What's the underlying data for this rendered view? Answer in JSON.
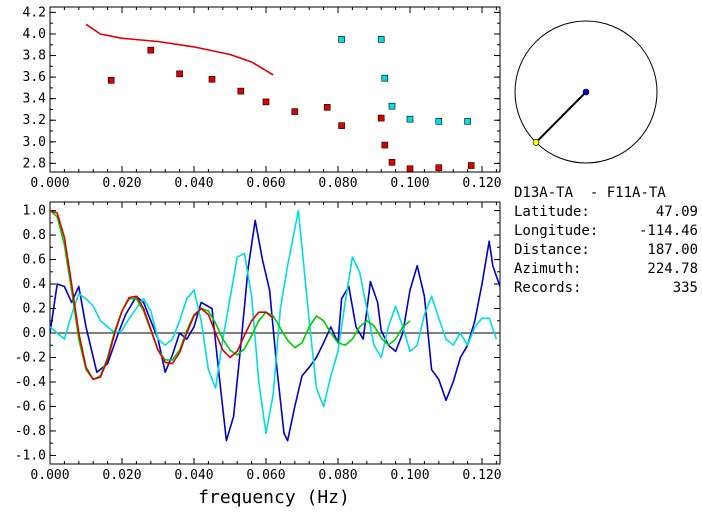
{
  "chart_data": [
    {
      "type": "scatter",
      "xlim": [
        0.0,
        0.125
      ],
      "ylim": [
        2.72,
        4.25
      ],
      "x_ticks": [
        "0.000",
        "0.020",
        "0.040",
        "0.060",
        "0.080",
        "0.100",
        "0.120"
      ],
      "y_ticks": [
        "2.8",
        "3.0",
        "3.2",
        "3.4",
        "3.6",
        "3.8",
        "4.0",
        "4.2"
      ],
      "y_tick_values": [
        2.8,
        3.0,
        3.2,
        3.4,
        3.6,
        3.8,
        4.0,
        4.2
      ],
      "x_tick_values": [
        0.0,
        0.02,
        0.04,
        0.06,
        0.08,
        0.1,
        0.12
      ],
      "series": [
        {
          "marker": "square",
          "color": "#dd0000",
          "points": [
            [
              0.017,
              3.57
            ],
            [
              0.028,
              3.85
            ],
            [
              0.036,
              3.63
            ],
            [
              0.045,
              3.58
            ],
            [
              0.053,
              3.47
            ],
            [
              0.06,
              3.37
            ],
            [
              0.068,
              3.28
            ],
            [
              0.077,
              3.32
            ],
            [
              0.081,
              3.15
            ],
            [
              0.092,
              3.22
            ],
            [
              0.093,
              2.97
            ],
            [
              0.095,
              2.81
            ],
            [
              0.1,
              2.75
            ],
            [
              0.108,
              2.76
            ],
            [
              0.117,
              2.78
            ]
          ]
        },
        {
          "marker": "square",
          "color": "#00dddd",
          "points": [
            [
              0.081,
              3.95
            ],
            [
              0.092,
              3.95
            ],
            [
              0.093,
              3.59
            ],
            [
              0.095,
              3.33
            ],
            [
              0.1,
              3.21
            ],
            [
              0.108,
              3.19
            ],
            [
              0.116,
              3.19
            ]
          ]
        },
        {
          "marker": "line",
          "color": "#dd0000",
          "points": [
            [
              0.01,
              4.09
            ],
            [
              0.014,
              4.0
            ],
            [
              0.02,
              3.96
            ],
            [
              0.03,
              3.93
            ],
            [
              0.04,
              3.88
            ],
            [
              0.05,
              3.81
            ],
            [
              0.056,
              3.74
            ],
            [
              0.062,
              3.62
            ]
          ]
        }
      ]
    },
    {
      "type": "line",
      "xlabel": "frequency (Hz)",
      "xlim": [
        0.0,
        0.125
      ],
      "ylim": [
        -1.07,
        1.07
      ],
      "x_ticks": [
        "0.000",
        "0.020",
        "0.040",
        "0.060",
        "0.080",
        "0.100",
        "0.120"
      ],
      "x_tick_values": [
        0.0,
        0.02,
        0.04,
        0.06,
        0.08,
        0.1,
        0.12
      ],
      "y_ticks": [
        "1.0",
        "0.8",
        "0.6",
        "0.4",
        "0.2",
        "0.0",
        "-0.2",
        "-0.4",
        "-0.6",
        "-0.8",
        "-1.0"
      ],
      "y_tick_values": [
        1.0,
        0.8,
        0.6,
        0.4,
        0.2,
        0.0,
        -0.2,
        -0.4,
        -0.6,
        -0.8,
        -1.0
      ],
      "series": [
        {
          "color": "#0000cc",
          "points": [
            [
              0.0,
              0.0
            ],
            [
              0.002,
              0.4
            ],
            [
              0.004,
              0.38
            ],
            [
              0.006,
              0.25
            ],
            [
              0.008,
              0.38
            ],
            [
              0.01,
              0.05
            ],
            [
              0.013,
              -0.32
            ],
            [
              0.016,
              -0.25
            ],
            [
              0.019,
              0.0
            ],
            [
              0.021,
              0.15
            ],
            [
              0.024,
              0.3
            ],
            [
              0.026,
              0.25
            ],
            [
              0.028,
              0.1
            ],
            [
              0.03,
              -0.05
            ],
            [
              0.032,
              -0.32
            ],
            [
              0.034,
              -0.18
            ],
            [
              0.036,
              0.0
            ],
            [
              0.038,
              -0.05
            ],
            [
              0.04,
              0.05
            ],
            [
              0.042,
              0.25
            ],
            [
              0.045,
              0.2
            ],
            [
              0.047,
              -0.35
            ],
            [
              0.049,
              -0.88
            ],
            [
              0.051,
              -0.68
            ],
            [
              0.053,
              -0.1
            ],
            [
              0.055,
              0.52
            ],
            [
              0.057,
              0.92
            ],
            [
              0.059,
              0.6
            ],
            [
              0.061,
              0.35
            ],
            [
              0.063,
              -0.28
            ],
            [
              0.065,
              -0.82
            ],
            [
              0.066,
              -0.88
            ],
            [
              0.068,
              -0.6
            ],
            [
              0.07,
              -0.35
            ],
            [
              0.072,
              -0.28
            ],
            [
              0.074,
              -0.2
            ],
            [
              0.076,
              -0.08
            ],
            [
              0.078,
              0.05
            ],
            [
              0.08,
              -0.08
            ],
            [
              0.081,
              0.28
            ],
            [
              0.083,
              0.38
            ],
            [
              0.085,
              0.05
            ],
            [
              0.087,
              -0.05
            ],
            [
              0.089,
              0.42
            ],
            [
              0.091,
              0.25
            ],
            [
              0.092,
              0.02
            ],
            [
              0.094,
              -0.1
            ],
            [
              0.096,
              -0.15
            ],
            [
              0.098,
              0.0
            ],
            [
              0.1,
              0.35
            ],
            [
              0.102,
              0.55
            ],
            [
              0.104,
              0.3
            ],
            [
              0.106,
              -0.3
            ],
            [
              0.108,
              -0.38
            ],
            [
              0.11,
              -0.55
            ],
            [
              0.112,
              -0.4
            ],
            [
              0.114,
              -0.2
            ],
            [
              0.116,
              -0.1
            ],
            [
              0.118,
              0.1
            ],
            [
              0.12,
              0.4
            ],
            [
              0.122,
              0.75
            ],
            [
              0.123,
              0.55
            ],
            [
              0.125,
              0.38
            ]
          ]
        },
        {
          "color": "#00dddd",
          "points": [
            [
              0.0,
              0.05
            ],
            [
              0.002,
              0.0
            ],
            [
              0.004,
              -0.05
            ],
            [
              0.006,
              0.15
            ],
            [
              0.008,
              0.32
            ],
            [
              0.01,
              0.28
            ],
            [
              0.012,
              0.22
            ],
            [
              0.014,
              0.1
            ],
            [
              0.016,
              0.05
            ],
            [
              0.018,
              0.0
            ],
            [
              0.02,
              0.02
            ],
            [
              0.022,
              0.12
            ],
            [
              0.024,
              0.2
            ],
            [
              0.026,
              0.28
            ],
            [
              0.028,
              0.18
            ],
            [
              0.03,
              -0.05
            ],
            [
              0.032,
              -0.1
            ],
            [
              0.034,
              -0.05
            ],
            [
              0.036,
              0.1
            ],
            [
              0.038,
              0.28
            ],
            [
              0.04,
              0.35
            ],
            [
              0.042,
              0.1
            ],
            [
              0.044,
              -0.3
            ],
            [
              0.046,
              -0.45
            ],
            [
              0.048,
              -0.05
            ],
            [
              0.05,
              0.28
            ],
            [
              0.052,
              0.62
            ],
            [
              0.054,
              0.65
            ],
            [
              0.056,
              0.3
            ],
            [
              0.058,
              -0.4
            ],
            [
              0.06,
              -0.82
            ],
            [
              0.062,
              -0.5
            ],
            [
              0.064,
              0.2
            ],
            [
              0.066,
              0.55
            ],
            [
              0.068,
              0.85
            ],
            [
              0.069,
              1.0
            ],
            [
              0.07,
              0.7
            ],
            [
              0.072,
              0.1
            ],
            [
              0.074,
              -0.45
            ],
            [
              0.076,
              -0.6
            ],
            [
              0.078,
              -0.35
            ],
            [
              0.08,
              -0.15
            ],
            [
              0.082,
              0.25
            ],
            [
              0.084,
              0.62
            ],
            [
              0.086,
              0.5
            ],
            [
              0.088,
              0.2
            ],
            [
              0.09,
              -0.1
            ],
            [
              0.092,
              -0.2
            ],
            [
              0.094,
              0.05
            ],
            [
              0.096,
              0.22
            ],
            [
              0.098,
              0.05
            ],
            [
              0.1,
              -0.15
            ],
            [
              0.102,
              -0.1
            ],
            [
              0.104,
              0.15
            ],
            [
              0.106,
              0.3
            ],
            [
              0.108,
              0.12
            ],
            [
              0.11,
              -0.05
            ],
            [
              0.112,
              -0.1
            ],
            [
              0.114,
              0.0
            ],
            [
              0.116,
              -0.1
            ],
            [
              0.118,
              0.05
            ],
            [
              0.12,
              0.12
            ],
            [
              0.122,
              0.12
            ],
            [
              0.124,
              -0.05
            ]
          ]
        },
        {
          "color": "#00cc00",
          "points": [
            [
              0.0,
              1.0
            ],
            [
              0.002,
              0.95
            ],
            [
              0.004,
              0.72
            ],
            [
              0.006,
              0.35
            ],
            [
              0.008,
              -0.05
            ],
            [
              0.01,
              -0.3
            ],
            [
              0.012,
              -0.38
            ],
            [
              0.014,
              -0.35
            ],
            [
              0.016,
              -0.2
            ],
            [
              0.018,
              0.02
            ],
            [
              0.02,
              0.18
            ],
            [
              0.022,
              0.28
            ],
            [
              0.024,
              0.28
            ],
            [
              0.026,
              0.18
            ],
            [
              0.028,
              0.02
            ],
            [
              0.03,
              -0.14
            ],
            [
              0.032,
              -0.22
            ],
            [
              0.034,
              -0.22
            ],
            [
              0.036,
              -0.14
            ],
            [
              0.038,
              0.02
            ],
            [
              0.04,
              0.15
            ],
            [
              0.042,
              0.2
            ],
            [
              0.044,
              0.18
            ],
            [
              0.046,
              0.08
            ],
            [
              0.048,
              -0.05
            ],
            [
              0.05,
              -0.14
            ],
            [
              0.052,
              -0.18
            ],
            [
              0.054,
              -0.13
            ],
            [
              0.056,
              -0.02
            ],
            [
              0.058,
              0.1
            ],
            [
              0.06,
              0.17
            ],
            [
              0.062,
              0.14
            ],
            [
              0.064,
              0.04
            ],
            [
              0.066,
              -0.06
            ],
            [
              0.068,
              -0.12
            ],
            [
              0.07,
              -0.08
            ],
            [
              0.072,
              0.05
            ],
            [
              0.074,
              0.14
            ],
            [
              0.076,
              0.1
            ],
            [
              0.078,
              0.0
            ],
            [
              0.08,
              -0.08
            ],
            [
              0.082,
              -0.1
            ],
            [
              0.084,
              -0.05
            ],
            [
              0.086,
              0.05
            ],
            [
              0.088,
              0.1
            ],
            [
              0.09,
              0.06
            ],
            [
              0.092,
              -0.04
            ],
            [
              0.094,
              -0.1
            ],
            [
              0.096,
              -0.05
            ],
            [
              0.098,
              0.05
            ],
            [
              0.1,
              0.1
            ]
          ]
        },
        {
          "color": "#dd0000",
          "points": [
            [
              0.0,
              1.0
            ],
            [
              0.002,
              0.98
            ],
            [
              0.004,
              0.78
            ],
            [
              0.006,
              0.4
            ],
            [
              0.008,
              0.0
            ],
            [
              0.01,
              -0.28
            ],
            [
              0.012,
              -0.38
            ],
            [
              0.014,
              -0.36
            ],
            [
              0.016,
              -0.22
            ],
            [
              0.018,
              0.0
            ],
            [
              0.02,
              0.18
            ],
            [
              0.022,
              0.29
            ],
            [
              0.024,
              0.3
            ],
            [
              0.026,
              0.2
            ],
            [
              0.028,
              0.03
            ],
            [
              0.03,
              -0.14
            ],
            [
              0.032,
              -0.24
            ],
            [
              0.034,
              -0.25
            ],
            [
              0.036,
              -0.16
            ],
            [
              0.038,
              0.0
            ],
            [
              0.04,
              0.14
            ],
            [
              0.042,
              0.2
            ],
            [
              0.044,
              0.15
            ],
            [
              0.046,
              0.0
            ],
            [
              0.048,
              -0.14
            ],
            [
              0.05,
              -0.2
            ],
            [
              0.052,
              -0.15
            ],
            [
              0.054,
              -0.02
            ],
            [
              0.056,
              0.1
            ],
            [
              0.058,
              0.17
            ],
            [
              0.06,
              0.17
            ],
            [
              0.062,
              0.12
            ]
          ]
        }
      ]
    }
  ],
  "station_pair": "D13A-TA  - F11A-TA",
  "info": {
    "latitude_label": "Latitude:",
    "latitude": "47.09",
    "longitude_label": "Longitude:",
    "longitude": "-114.46",
    "distance_label": "Distance:",
    "distance": "187.00",
    "azimuth_label": "Azimuth:",
    "azimuth": "224.78",
    "records_label": "Records:",
    "records": "335"
  },
  "map": {
    "azimuth_deg": 224.78,
    "center_color": "#0000cc",
    "end_color": "#ffff00"
  }
}
